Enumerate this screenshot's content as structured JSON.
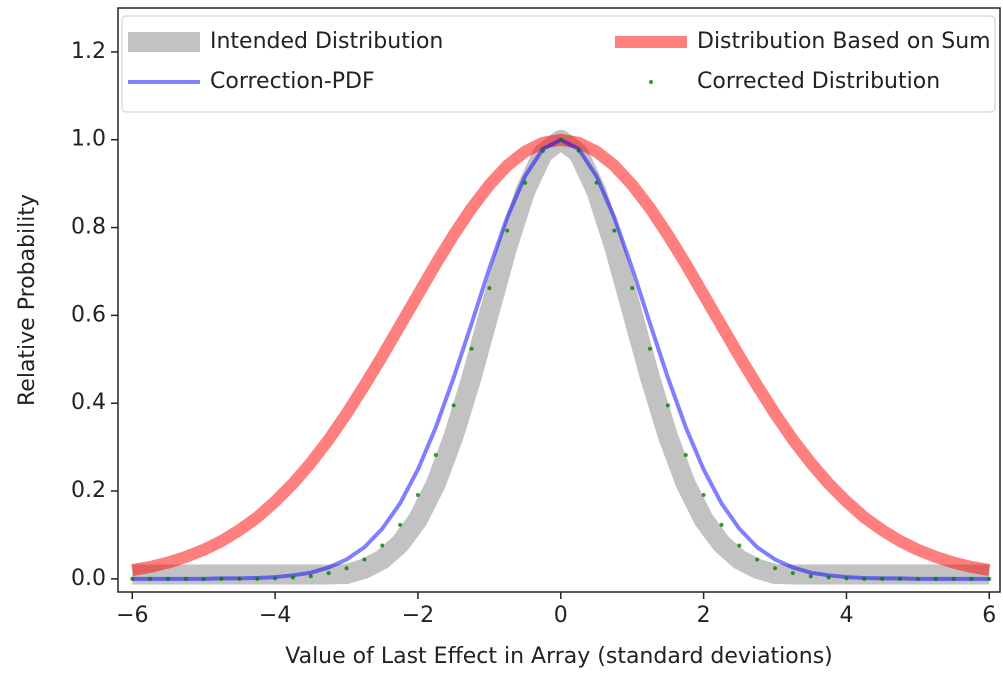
{
  "chart_data": {
    "type": "line",
    "xlabel": "Value of Last Effect in Array (standard deviations)",
    "ylabel": "Relative Probability",
    "x": [
      -6,
      -5.75,
      -5.5,
      -5.25,
      -5,
      -4.75,
      -4.5,
      -4.25,
      -4,
      -3.75,
      -3.5,
      -3.25,
      -3,
      -2.75,
      -2.5,
      -2.25,
      -2,
      -1.75,
      -1.5,
      -1.25,
      -1,
      -0.75,
      -0.5,
      -0.25,
      0,
      0.25,
      0.5,
      0.75,
      1,
      1.25,
      1.5,
      1.75,
      2,
      2.25,
      2.5,
      2.75,
      3,
      3.25,
      3.5,
      3.75,
      4,
      4.25,
      4.5,
      4.75,
      5,
      5.25,
      5.5,
      5.75,
      6
    ],
    "xlim": [
      -6.2,
      6.15
    ],
    "ylim": [
      -0.03,
      1.3
    ],
    "xticks": [
      {
        "value": -6,
        "label": "−6"
      },
      {
        "value": -4,
        "label": "−4"
      },
      {
        "value": -2,
        "label": "−2"
      },
      0,
      2,
      4,
      6
    ],
    "yticks": [
      {
        "value": 0,
        "label": "0.0"
      },
      0.2,
      0.4,
      0.6,
      0.8,
      {
        "value": 1,
        "label": "1.0"
      },
      1.2
    ],
    "legend": "upper center",
    "legend_columns": 2,
    "series": [
      {
        "name": "Intended Distribution",
        "color": "#999999",
        "style": "line",
        "linewidth": 20,
        "opacity": 0.6,
        "values": [
          0.01,
          0.01,
          0.01,
          0.01,
          0.01,
          0.01,
          0.01,
          0.01,
          0.01,
          0.01,
          0.01,
          0.01,
          0.011,
          0.023,
          0.044,
          0.08,
          0.135,
          0.216,
          0.325,
          0.458,
          0.607,
          0.755,
          0.882,
          0.969,
          1,
          0.969,
          0.882,
          0.755,
          0.607,
          0.458,
          0.325,
          0.216,
          0.135,
          0.08,
          0.044,
          0.023,
          0.011,
          0.01,
          0.01,
          0.01,
          0.01,
          0.01,
          0.01,
          0.01,
          0.01,
          0.01,
          0.01,
          0.01,
          0.01
        ]
      },
      {
        "name": "Distribution Based on Sum",
        "color": "#ff0000",
        "style": "line",
        "linewidth": 12,
        "opacity": 0.5,
        "values": [
          0.02,
          0.027,
          0.037,
          0.05,
          0.066,
          0.086,
          0.111,
          0.14,
          0.176,
          0.217,
          0.264,
          0.317,
          0.376,
          0.44,
          0.507,
          0.577,
          0.647,
          0.717,
          0.783,
          0.844,
          0.897,
          0.941,
          0.973,
          0.993,
          1,
          0.993,
          0.973,
          0.941,
          0.897,
          0.844,
          0.783,
          0.717,
          0.647,
          0.577,
          0.507,
          0.44,
          0.376,
          0.317,
          0.264,
          0.217,
          0.176,
          0.14,
          0.111,
          0.086,
          0.066,
          0.05,
          0.037,
          0.027,
          0.02
        ]
      },
      {
        "name": "Correction-PDF",
        "color": "#0000ff",
        "style": "line",
        "linewidth": 4,
        "opacity": 0.5,
        "values": [
          0,
          0,
          0,
          0,
          0,
          0.001,
          0.001,
          0.002,
          0.004,
          0.008,
          0.014,
          0.026,
          0.044,
          0.072,
          0.114,
          0.172,
          0.249,
          0.345,
          0.458,
          0.581,
          0.707,
          0.823,
          0.917,
          0.979,
          1,
          0.979,
          0.917,
          0.823,
          0.707,
          0.581,
          0.458,
          0.345,
          0.249,
          0.172,
          0.114,
          0.072,
          0.044,
          0.026,
          0.014,
          0.008,
          0.004,
          0.002,
          0.001,
          0.001,
          0,
          0,
          0,
          0,
          0
        ]
      },
      {
        "name": "Corrected Distribution",
        "color": "#008000",
        "style": "dots",
        "linewidth": 2,
        "opacity": 0.8,
        "values": [
          0,
          0,
          0,
          0,
          0,
          0,
          0,
          0,
          0.001,
          0.003,
          0.006,
          0.013,
          0.024,
          0.044,
          0.076,
          0.123,
          0.191,
          0.282,
          0.395,
          0.524,
          0.662,
          0.793,
          0.902,
          0.975,
          1,
          0.975,
          0.902,
          0.793,
          0.662,
          0.524,
          0.395,
          0.282,
          0.191,
          0.123,
          0.076,
          0.044,
          0.024,
          0.013,
          0.006,
          0.003,
          0.001,
          0,
          0,
          0,
          0,
          0,
          0,
          0,
          0
        ]
      }
    ]
  }
}
